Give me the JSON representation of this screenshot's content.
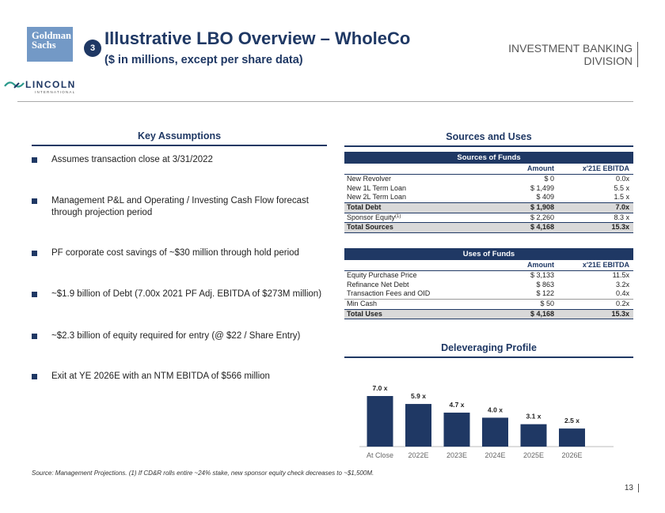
{
  "header": {
    "gs_logo_line1": "Goldman",
    "gs_logo_line2": "Sachs",
    "step_number": "3",
    "title": "Illustrative LBO Overview – WholeCo",
    "subtitle": "($ in millions, except per share data)",
    "division_line1": "INVESTMENT BANKING",
    "division_line2": "DIVISION",
    "lincoln_logo": "LINCOLN",
    "lincoln_sub": "INTERNATIONAL"
  },
  "assumptions": {
    "heading": "Key Assumptions",
    "items": [
      "Assumes transaction close at 3/31/2022",
      "Management P&L and Operating / Investing Cash Flow forecast through projection period",
      "PF corporate cost savings of ~$30 million through hold period",
      "~$1.9 billion of Debt (7.00x 2021 PF Adj. EBITDA of $273M million)",
      "~$2.3 billion of equity required for entry (@ $22 / Share Entry)",
      "Exit at YE 2026E with an NTM EBITDA of $566 million"
    ]
  },
  "sources_uses": {
    "heading": "Sources and Uses",
    "sources": {
      "title": "Sources of Funds",
      "col_amount": "Amount",
      "col_multiple": "x'21E EBITDA",
      "rows": [
        {
          "label": "New Revolver",
          "amount": "$ 0",
          "multiple": "0.0x"
        },
        {
          "label": "New 1L Term Loan",
          "amount": "$ 1,499",
          "multiple": "5.5 x"
        },
        {
          "label": "New 2L Term Loan",
          "amount": "$ 409",
          "multiple": "1.5 x"
        }
      ],
      "total_debt": {
        "label": "Total Debt",
        "amount": "$ 1,908",
        "multiple": "7.0x"
      },
      "sponsor": {
        "label": "Sponsor Equity",
        "footnote": "(1)",
        "amount": "$ 2,260",
        "multiple": "8.3 x"
      },
      "total": {
        "label": "Total Sources",
        "amount": "$ 4,168",
        "multiple": "15.3x"
      }
    },
    "uses": {
      "title": "Uses of Funds",
      "col_amount": "Amount",
      "col_multiple": "x'21E EBITDA",
      "rows": [
        {
          "label": "Equity Purchase Price",
          "amount": "$ 3,133",
          "multiple": "11.5x"
        },
        {
          "label": "Refinance Net Debt",
          "amount": "$ 863",
          "multiple": "3.2x"
        },
        {
          "label": "Transaction Fees and OID",
          "amount": "$ 122",
          "multiple": "0.4x"
        },
        {
          "label": "Min Cash",
          "amount": "$ 50",
          "multiple": "0.2x"
        }
      ],
      "total": {
        "label": "Total Uses",
        "amount": "$ 4,168",
        "multiple": "15.3x"
      }
    }
  },
  "deleveraging": {
    "heading": "Deleveraging Profile"
  },
  "chart_data": {
    "type": "bar",
    "title": "Deleveraging Profile",
    "categories": [
      "At Close",
      "2022E",
      "2023E",
      "2024E",
      "2025E",
      "2026E"
    ],
    "values": [
      7.0,
      5.9,
      4.7,
      4.0,
      3.1,
      2.5
    ],
    "labels": [
      "7.0 x",
      "5.9 x",
      "4.7 x",
      "4.0 x",
      "3.1 x",
      "2.5 x"
    ],
    "ylim": [
      0,
      7.0
    ],
    "color": "#1f3864"
  },
  "footer": {
    "source": "Source: Management Projections. (1) If CD&R rolls entire ~24% stake, new sponsor equity check decreases to ~$1,500M.",
    "page": "13"
  }
}
